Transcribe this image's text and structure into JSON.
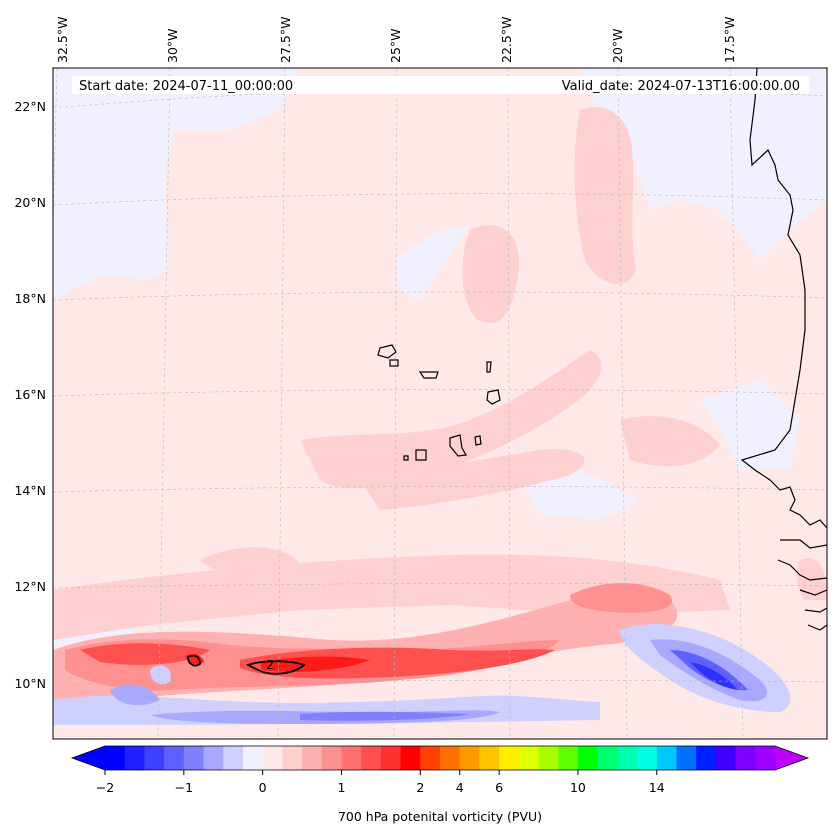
{
  "header": {
    "start_date": "Start date: 2024-07-11_00:00:00",
    "valid_date": "Valid_date: 2024-07-13T16:00:00.00"
  },
  "lon_labels": [
    "32.5°W",
    "30°W",
    "27.5°W",
    "25°W",
    "22.5°W",
    "20°W",
    "17.5°W"
  ],
  "lat_labels": [
    "22°N",
    "20°N",
    "18°N",
    "16°N",
    "14°N",
    "12°N",
    "10°N"
  ],
  "colorbar": {
    "label": "700 hPa potenital vorticity (PVU)",
    "tick_labels": [
      "−2",
      "−1",
      "0",
      "1",
      "2",
      "4",
      "6",
      "10",
      "14"
    ],
    "colors": [
      "#0000ff",
      "#2020ff",
      "#4040ff",
      "#6060ff",
      "#8080ff",
      "#a8a8ff",
      "#d0d0ff",
      "#f0f0ff",
      "#ffe8e8",
      "#ffd0d0",
      "#ffb0b0",
      "#ff9090",
      "#ff7070",
      "#ff5050",
      "#ff3030",
      "#ff0000",
      "#ff4000",
      "#ff7000",
      "#ff9a00",
      "#ffc400",
      "#ffee00",
      "#e0ff00",
      "#a8ff00",
      "#60ff00",
      "#00ff00",
      "#00ff70",
      "#00ffb0",
      "#00ffe0",
      "#00c8ff",
      "#0070ff",
      "#0020ff",
      "#4000ff",
      "#8000ff",
      "#a000ff"
    ],
    "extend_low_color": "#0000ff",
    "extend_high_color": "#c000ff"
  },
  "contour_label": "2"
}
